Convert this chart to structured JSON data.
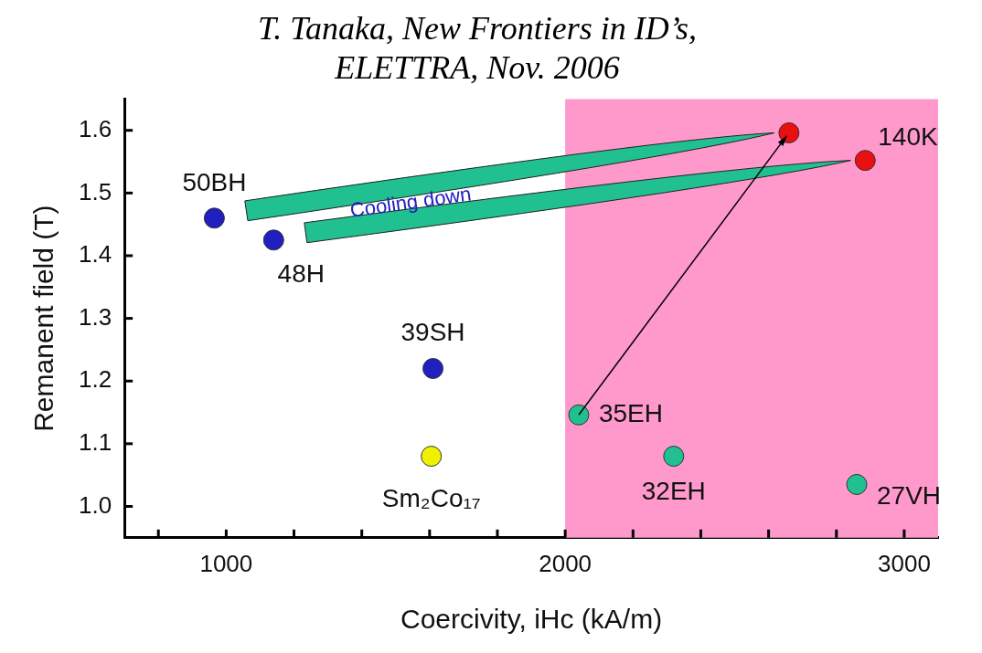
{
  "chart_data": {
    "type": "scatter",
    "title": "T. Tanaka, New Frontiers in ID’s,\nELETTRA, Nov. 2006",
    "xlabel": "Coercivity, iHc (kA/m)",
    "ylabel": "Remanent field (T)",
    "xlim": [
      700,
      3100
    ],
    "ylim": [
      0.95,
      1.65
    ],
    "xticks": [
      {
        "value": 800,
        "label": null
      },
      1000,
      {
        "value": 1200,
        "label": null
      },
      {
        "value": 1400,
        "label": null
      },
      {
        "value": 1600,
        "label": null
      },
      {
        "value": 1800,
        "label": null
      },
      2000,
      {
        "value": 2200,
        "label": null
      },
      {
        "value": 2400,
        "label": null
      },
      {
        "value": 2600,
        "label": null
      },
      {
        "value": 2800,
        "label": null
      },
      3000
    ],
    "yticks": [
      {
        "value": 1,
        "label": "1.0"
      },
      1.1,
      1.2,
      1.3,
      1.4,
      1.5,
      1.6
    ],
    "grid": false,
    "legend": false,
    "marker": "circle",
    "series": [
      {
        "color": "#2020c0",
        "x": [
          965,
          1140,
          1610
        ],
        "values": [
          1.46,
          1.425,
          1.22
        ]
      },
      {
        "color": "#f0f000",
        "x": [
          1605
        ],
        "values": [
          1.08
        ]
      },
      {
        "color": "#20c090",
        "x": [
          2040,
          2320,
          2860
        ],
        "values": [
          1.146,
          1.08,
          1.035
        ]
      },
      {
        "color": "#e81010",
        "x": [
          2660,
          2885
        ],
        "values": [
          1.596,
          1.552
        ]
      }
    ],
    "bands": [
      {
        "axis": "x",
        "from": 2000,
        "to": 3100,
        "color": "#ff99cc"
      }
    ],
    "annotations": [
      {
        "text": "50BH",
        "x": 965,
        "y": 1.46
      },
      {
        "text": "48H",
        "x": 1140,
        "y": 1.425
      },
      {
        "text": "39SH",
        "x": 1610,
        "y": 1.22
      },
      {
        "text": "Sm₂Co₁₇",
        "x": 1605,
        "y": 1.08
      },
      {
        "text": "35EH",
        "x": 2040,
        "y": 1.146
      },
      {
        "text": "32EH",
        "x": 2320,
        "y": 1.08
      },
      {
        "text": "27VH",
        "x": 2860,
        "y": 1.035
      },
      {
        "text": "140K",
        "x": 2885,
        "y": 1.552
      },
      "Cooling down"
    ]
  }
}
